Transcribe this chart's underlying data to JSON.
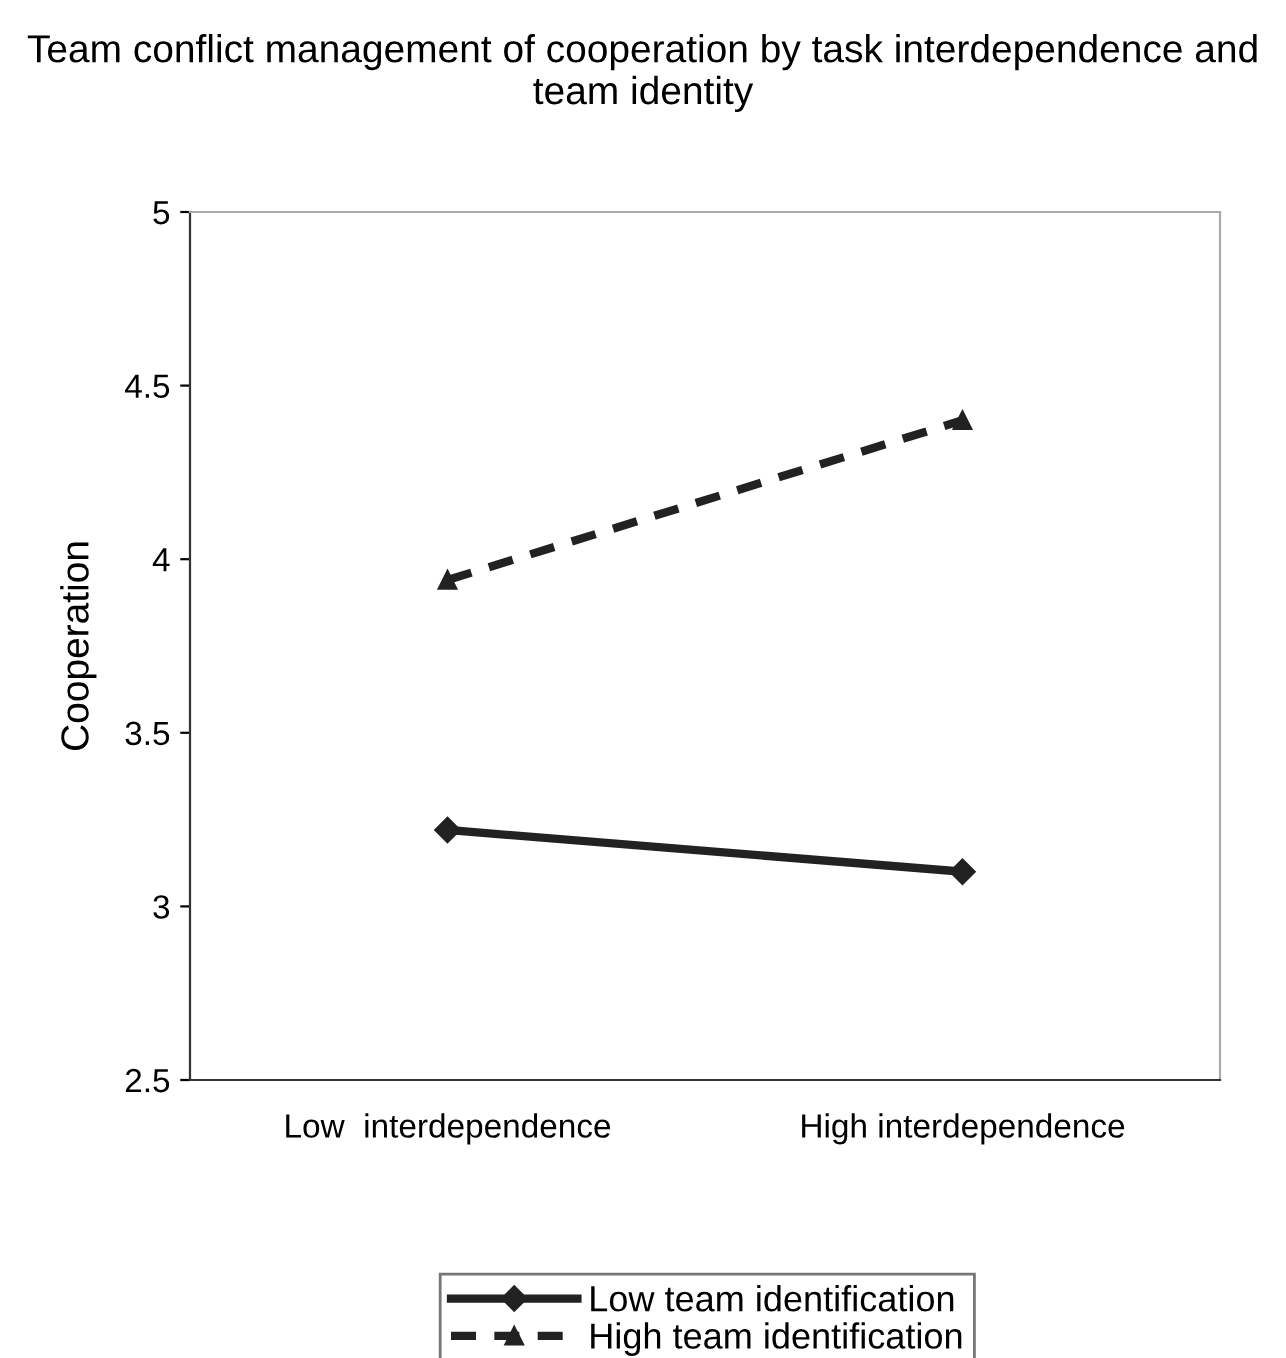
{
  "chart_data": {
    "type": "line",
    "title": "Team conflict management of cooperation by task interdependence and team identity",
    "ylabel": "Cooperation",
    "categories": [
      "Low  interdependence",
      "High interdependence"
    ],
    "series": [
      {
        "name": "Low team identification",
        "color": "#222222",
        "values": [
          3.22,
          3.1
        ],
        "marker": "diamond",
        "line_style": "solid"
      },
      {
        "name": "High team identification",
        "color": "#222222",
        "values": [
          3.94,
          4.4
        ],
        "marker": "triangle",
        "line_style": "dashed"
      }
    ],
    "ylim": [
      2.5,
      5
    ],
    "yticks": [
      2.5,
      3,
      3.5,
      4,
      4.5,
      5
    ],
    "legend": "bottom"
  }
}
